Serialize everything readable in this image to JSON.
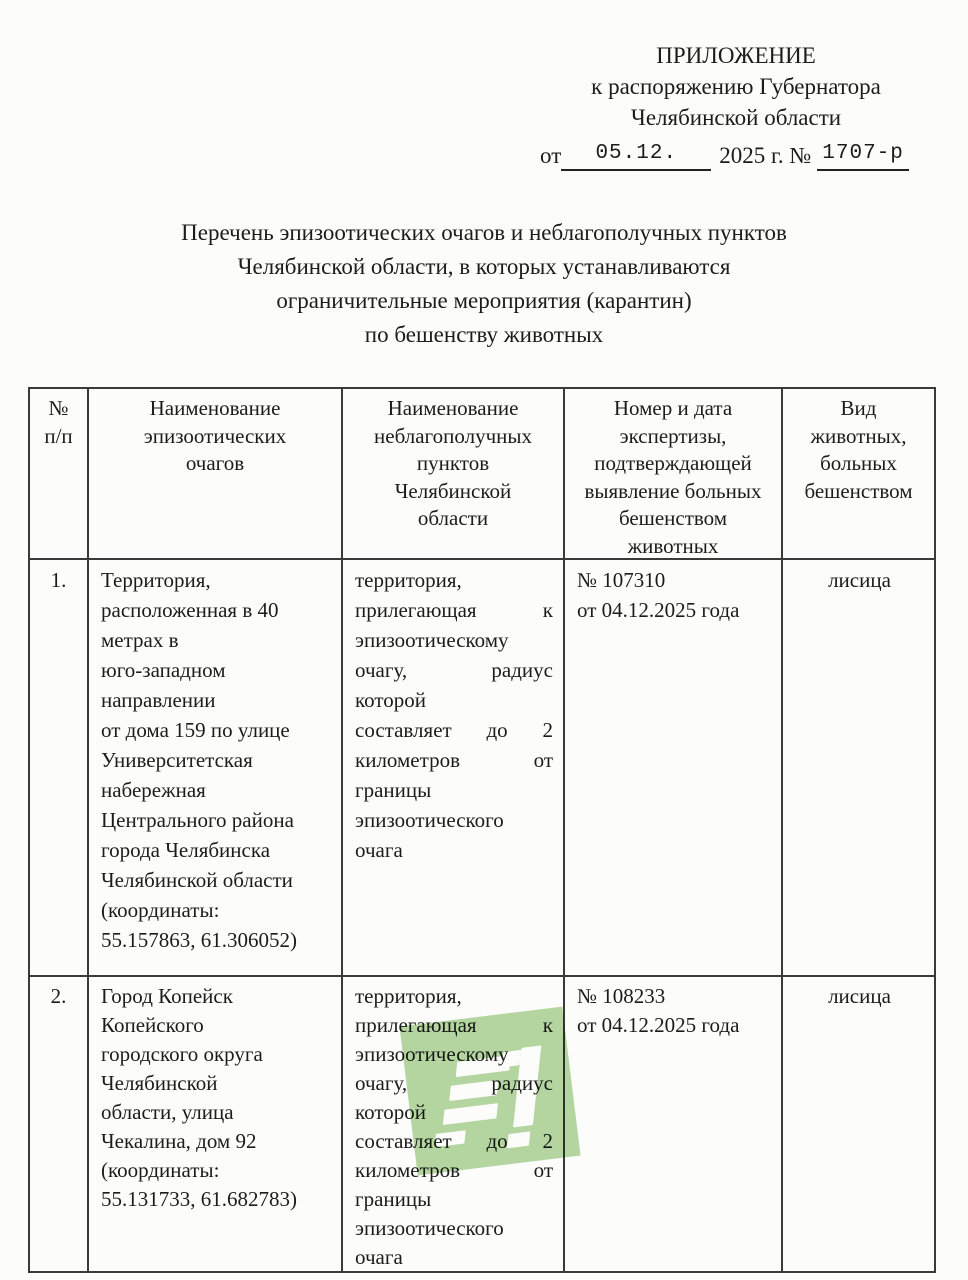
{
  "appendix": {
    "title": "ПРИЛОЖЕНИЕ",
    "line2": "к распоряжению Губернатора",
    "line3": "Челябинской области",
    "from_label": "от",
    "date": "05.12.",
    "year_label": "2025 г. №",
    "number": "1707-р"
  },
  "doc_title_lines": [
    "Перечень эпизоотических очагов и неблагополучных пунктов",
    "Челябинской области, в которых устанавливаются",
    "ограничительные мероприятия (карантин)",
    "по бешенству животных"
  ],
  "table": {
    "headers": [
      {
        "lines": [
          "№",
          "п/п"
        ]
      },
      {
        "lines": [
          "Наименование",
          "эпизоотических",
          "очагов"
        ]
      },
      {
        "lines": [
          "Наименование",
          "неблагополучных",
          "пунктов",
          "Челябинской",
          "области"
        ]
      },
      {
        "lines": [
          "Номер и дата",
          "экспертизы,",
          "подтверждающей",
          "выявление больных",
          "бешенством",
          "животных"
        ]
      },
      {
        "lines": [
          "Вид",
          "животных,",
          "больных",
          "бешенством"
        ]
      }
    ],
    "rows": [
      {
        "num": "1.",
        "focus_lines": [
          "Территория,",
          "расположенная в 40",
          "метрах в",
          "юго-западном",
          "направлении",
          "от дома 159 по улице",
          "Университетская",
          "набережная",
          "Центрального района",
          "города Челябинска",
          "Челябинской области",
          "(координаты:",
          "55.157863, 61.306052)"
        ],
        "adjacent_lines": [
          "территория,",
          "прилегающая к",
          "эпизоотическому",
          "очагу, радиус",
          "которой",
          "составляет до 2",
          "километров от",
          "границы",
          "эпизоотического",
          "очага"
        ],
        "expertise_lines": [
          "№ 107310",
          "от 04.12.2025 года"
        ],
        "animal": "лисица"
      },
      {
        "num": "2.",
        "focus_lines": [
          "Город Копейск",
          "Копейского",
          "городского округа",
          "Челябинской",
          "области, улица",
          "Чекалина, дом 92",
          "(координаты:",
          "55.131733, 61.682783)"
        ],
        "adjacent_lines": [
          "территория,",
          "прилегающая к",
          "эпизоотическому",
          "очагу, радиус",
          "которой",
          "составляет до 2",
          "километров от",
          "границы",
          "эпизоотического",
          "очага"
        ],
        "expertise_lines": [
          "№ 108233",
          "от 04.12.2025 года"
        ],
        "animal": "лисица"
      }
    ]
  },
  "watermark": {
    "text": "31",
    "color": "#b6d8a3"
  }
}
